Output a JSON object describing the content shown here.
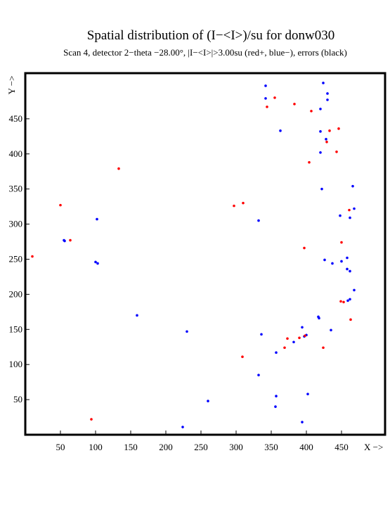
{
  "chart_data": {
    "type": "scatter",
    "title": "Spatial distribution of (I−<I>)/su for donw030",
    "subtitle": "Scan  4, detector 2−theta −28.00°, |I−<I>|>3.00su (red+, blue−), errors (black)",
    "x_label": "X −>",
    "y_label": "Y −>",
    "xlim": [
      0,
      512
    ],
    "ylim": [
      0,
      515
    ],
    "xticks": [
      50,
      100,
      150,
      200,
      250,
      300,
      350,
      400,
      450
    ],
    "yticks": [
      50,
      100,
      150,
      200,
      250,
      300,
      350,
      400,
      450
    ],
    "series": [
      {
        "color": "#0000ff",
        "x": [
          342,
          424,
          430,
          430,
          342,
          420,
          363,
          420,
          428,
          420,
          466,
          422,
          468,
          448,
          462,
          332,
          102,
          55,
          56,
          458,
          426,
          450,
          437,
          458,
          462,
          468,
          462,
          459,
          100,
          103,
          159,
          417,
          418,
          394,
          435,
          230,
          400,
          397,
          336,
          382,
          357,
          332,
          357,
          402,
          356,
          260,
          394,
          224
        ],
        "values": [
          497,
          501,
          486,
          477,
          479,
          464,
          433,
          432,
          421,
          402,
          354,
          350,
          322,
          312,
          309,
          305,
          307,
          277,
          276,
          252,
          249,
          247,
          244,
          236,
          233,
          206,
          193,
          191,
          246,
          244,
          170,
          168,
          166,
          153,
          149,
          147,
          142,
          140,
          143,
          132,
          117,
          85,
          55,
          58,
          40,
          48,
          18,
          11
        ]
      },
      {
        "color": "#ff0000",
        "x": [
          355,
          344,
          383,
          407,
          446,
          433,
          429,
          443,
          404,
          133,
          50,
          310,
          297,
          461,
          450,
          397,
          64,
          10,
          449,
          453,
          463,
          373,
          390,
          398,
          369,
          424,
          309,
          94
        ],
        "values": [
          480,
          467,
          471,
          461,
          436,
          433,
          417,
          403,
          388,
          379,
          327,
          330,
          326,
          320,
          274,
          266,
          277,
          254,
          190,
          189,
          164,
          137,
          138,
          141,
          124,
          124,
          111,
          22
        ]
      }
    ]
  }
}
